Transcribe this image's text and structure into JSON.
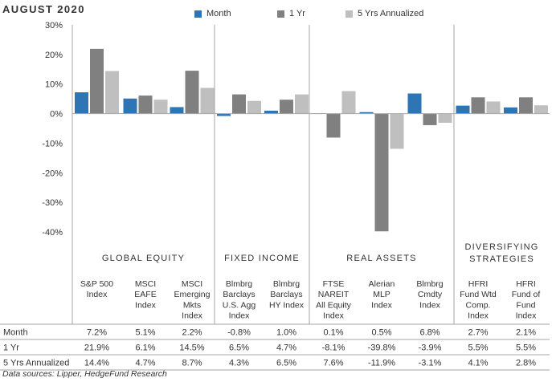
{
  "title": "AUGUST 2020",
  "footer": "Data sources: Lipper, HedgeFund Research",
  "colors": {
    "month": "#2e75b6",
    "one_yr": "#808080",
    "five_yr": "#bfbfbf",
    "divider": "#a6a6a6",
    "grid": "#bfbfbf"
  },
  "chart_data": {
    "type": "bar",
    "title": "AUGUST 2020",
    "ylim": [
      -40,
      30
    ],
    "yticks": [
      "30%",
      "20%",
      "10%",
      "0%",
      "-10%",
      "-20%",
      "-30%",
      "-40%"
    ],
    "ytick_values": [
      30,
      20,
      10,
      0,
      -10,
      -20,
      -30,
      -40
    ],
    "legend_position": "top",
    "grid": false,
    "groups": [
      {
        "name": "GLOBAL EQUITY",
        "categories": [
          0,
          1,
          2
        ]
      },
      {
        "name": "FIXED INCOME",
        "categories": [
          3,
          4
        ]
      },
      {
        "name": "REAL ASSETS",
        "categories": [
          5,
          6,
          7
        ]
      },
      {
        "name": "DIVERSIFYING STRATEGIES",
        "name_lines": [
          "DIVERSIFYING",
          "STRATEGIES"
        ],
        "categories": [
          8,
          9
        ]
      }
    ],
    "categories": [
      [
        "S&P 500",
        "Index"
      ],
      [
        "MSCI",
        "EAFE",
        "Index"
      ],
      [
        "MSCI",
        "Emerging",
        "Mkts",
        "Index"
      ],
      [
        "Blmbrg",
        "Barclays",
        "U.S. Agg",
        "Index"
      ],
      [
        "Blmbrg",
        "Barclays",
        "HY Index"
      ],
      [
        "FTSE",
        "NAREIT",
        "All Equity",
        "Index"
      ],
      [
        "Alerian",
        "MLP",
        "Index"
      ],
      [
        "Blmbrg",
        "Cmdty",
        "Index"
      ],
      [
        "HFRI",
        "Fund Wtd",
        "Comp.",
        "Index"
      ],
      [
        "HFRI",
        "Fund of",
        "Fund",
        "Index"
      ]
    ],
    "series": [
      {
        "name": "Month",
        "values": [
          7.2,
          5.1,
          2.2,
          -0.8,
          1.0,
          0.1,
          0.5,
          6.8,
          2.7,
          2.1
        ],
        "labels": [
          "7.2%",
          "5.1%",
          "2.2%",
          "-0.8%",
          "1.0%",
          "0.1%",
          "0.5%",
          "6.8%",
          "2.7%",
          "2.1%"
        ]
      },
      {
        "name": "1 Yr",
        "values": [
          21.9,
          6.1,
          14.5,
          6.5,
          4.7,
          -8.1,
          -39.8,
          -3.9,
          5.5,
          5.5
        ],
        "labels": [
          "21.9%",
          "6.1%",
          "14.5%",
          "6.5%",
          "4.7%",
          "-8.1%",
          "-39.8%",
          "-3.9%",
          "5.5%",
          "5.5%"
        ]
      },
      {
        "name": "5 Yrs Annualized",
        "values": [
          14.4,
          4.7,
          8.7,
          4.3,
          6.5,
          7.6,
          -11.9,
          -3.1,
          4.1,
          2.8
        ],
        "labels": [
          "14.4%",
          "4.7%",
          "8.7%",
          "4.3%",
          "6.5%",
          "7.6%",
          "-11.9%",
          "-3.1%",
          "4.1%",
          "2.8%"
        ]
      }
    ]
  }
}
